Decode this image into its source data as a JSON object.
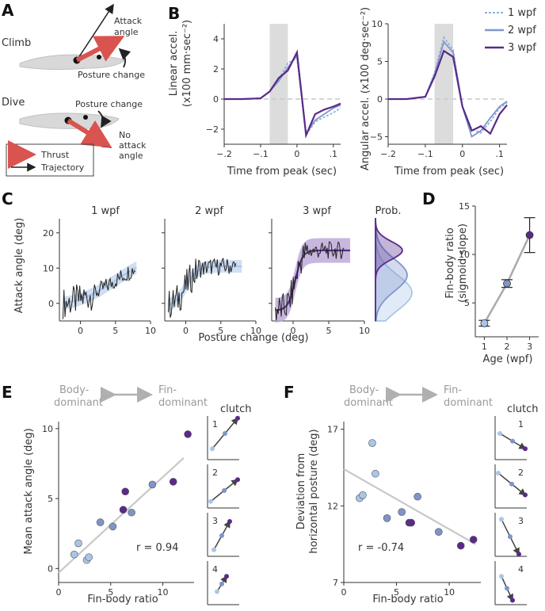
{
  "panels": {
    "A": {
      "letter": "A",
      "climb": {
        "title": "Climb",
        "attack_label_1": "Attack",
        "attack_label_2": "angle",
        "posture": "Posture change"
      },
      "dive": {
        "title": "Dive",
        "posture": "Posture change",
        "no_attack_1": "No",
        "no_attack_2": "attack",
        "no_attack_3": "angle"
      },
      "legend": {
        "thrust": "Thrust",
        "trajectory": "Trajectory"
      }
    },
    "B": {
      "letter": "B",
      "xlabel": "Time from peak (sec)",
      "left_ylabel_1": "Linear accel.",
      "left_ylabel_2": "(x100 mm·sec⁻²)",
      "right_ylabel": "Angular accel. (x100 deg·sec⁻²)",
      "legend": [
        "1 wpf",
        "2 wpf",
        "3 wpf"
      ]
    },
    "C": {
      "letter": "C",
      "titles": [
        "1 wpf",
        "2 wpf",
        "3 wpf",
        "Prob."
      ],
      "xlabel": "Posture change (deg)",
      "ylabel": "Attack angle (deg)"
    },
    "D": {
      "letter": "D",
      "ylabel_1": "Fin-body ratio",
      "ylabel_2": "(sigmoid slope)",
      "xlabel": "Age (wpf)"
    },
    "E": {
      "letter": "E",
      "body_dominant_1": "Body-",
      "body_dominant_2": "dominant",
      "fin_dominant_1": "Fin-",
      "fin_dominant_2": "dominant",
      "ylabel": "Mean attack angle (deg)",
      "xlabel": "Fin-body ratio",
      "r_text": "r = 0.94",
      "clutch_title": "clutch",
      "clutch_labels": [
        "1",
        "2",
        "3",
        "4"
      ]
    },
    "F": {
      "letter": "F",
      "body_dominant_1": "Body-",
      "body_dominant_2": "dominant",
      "fin_dominant_1": "Fin-",
      "fin_dominant_2": "dominant",
      "ylabel_1": "Deviation from",
      "ylabel_2": "horizontal posture (deg)",
      "xlabel": "Fin-body ratio",
      "r_text": "r = -0.74",
      "clutch_title": "clutch",
      "clutch_labels": [
        "1",
        "2",
        "3",
        "4"
      ]
    }
  },
  "colors": {
    "wpf1": "#a9c6e8",
    "wpf2": "#6a7fbf",
    "wpf3": "#5a2a8a",
    "shade": "#dcdcdc",
    "trace": "#222222",
    "red": "#d9534f",
    "fit": "#c8c8c8"
  },
  "chart_data": [
    {
      "id": "B-left",
      "type": "line",
      "xlabel": "Time from peak (sec)",
      "ylabel": "Linear accel. (x100 mm·sec⁻²)",
      "xlim": [
        -0.2,
        0.12
      ],
      "ylim": [
        -3,
        5
      ],
      "xticks": [
        -0.2,
        -0.1,
        0,
        0.1
      ],
      "yticks": [
        -2,
        0,
        2,
        4
      ],
      "shaded_region": [
        -0.075,
        -0.025
      ],
      "x": [
        -0.2,
        -0.15,
        -0.1,
        -0.075,
        -0.05,
        -0.025,
        0,
        0.025,
        0.05,
        0.075,
        0.1,
        0.12
      ],
      "series": [
        {
          "name": "1 wpf",
          "values": [
            0,
            0,
            0.05,
            0.5,
            1.3,
            2.4,
            2.7,
            -2.4,
            -1.5,
            -1.2,
            -0.9,
            -0.6
          ]
        },
        {
          "name": "2 wpf",
          "values": [
            0,
            0,
            0.05,
            0.5,
            1.2,
            2.1,
            2.9,
            -2.3,
            -1.4,
            -1.0,
            -0.6,
            -0.4
          ]
        },
        {
          "name": "3 wpf",
          "values": [
            0,
            0,
            0.05,
            0.5,
            1.4,
            1.9,
            3.1,
            -2.4,
            -1.0,
            -0.7,
            -0.5,
            -0.3
          ]
        }
      ]
    },
    {
      "id": "B-right",
      "type": "line",
      "xlabel": "Time from peak (sec)",
      "ylabel": "Angular accel. (x100 deg·sec⁻²)",
      "xlim": [
        -0.2,
        0.12
      ],
      "ylim": [
        -6,
        10
      ],
      "xticks": [
        -0.2,
        -0.1,
        0,
        0.1
      ],
      "yticks": [
        -5,
        0,
        5,
        10
      ],
      "shaded_region": [
        -0.075,
        -0.025
      ],
      "x": [
        -0.2,
        -0.15,
        -0.1,
        -0.075,
        -0.05,
        -0.025,
        0,
        0.025,
        0.05,
        0.075,
        0.1,
        0.12
      ],
      "series": [
        {
          "name": "1 wpf",
          "values": [
            0,
            0,
            0.3,
            3.5,
            8.2,
            6.5,
            -1.0,
            -4.0,
            -4.5,
            -3.0,
            -1.2,
            -0.5
          ]
        },
        {
          "name": "2 wpf",
          "values": [
            0,
            0,
            0.3,
            3.3,
            7.6,
            6.2,
            -1.0,
            -5.0,
            -4.2,
            -2.5,
            -1.0,
            -0.3
          ]
        },
        {
          "name": "3 wpf",
          "values": [
            0,
            0,
            0.3,
            3.0,
            6.4,
            5.6,
            -1.0,
            -4.2,
            -3.6,
            -4.6,
            -2.0,
            -0.8
          ]
        }
      ],
      "legend": "top-right"
    },
    {
      "id": "C",
      "type": "line",
      "xlabel": "Posture change (deg)",
      "ylabel": "Attack angle (deg)",
      "xlim": [
        -3,
        10
      ],
      "ylim": [
        -5,
        24
      ],
      "xticks": [
        0,
        5,
        10
      ],
      "yticks": [
        0,
        10,
        20
      ],
      "subplots": [
        "1 wpf",
        "2 wpf",
        "3 wpf"
      ]
    },
    {
      "id": "D",
      "type": "scatter",
      "xlabel": "Age (wpf)",
      "ylabel": "Fin-body ratio (sigmoid slope)",
      "xlim": [
        0.6,
        3.4
      ],
      "ylim": [
        1.5,
        15
      ],
      "xticks": [
        1,
        2,
        3
      ],
      "yticks": [
        5,
        10,
        15
      ],
      "x": [
        1,
        2,
        3
      ],
      "values": [
        2.9,
        7.0,
        12.0
      ],
      "errors": [
        0.3,
        0.4,
        1.8
      ]
    },
    {
      "id": "E",
      "type": "scatter",
      "xlabel": "Fin-body ratio",
      "ylabel": "Mean attack angle (deg)",
      "xlim": [
        0,
        13
      ],
      "ylim": [
        -1,
        10.5
      ],
      "xticks": [
        0,
        5,
        10
      ],
      "yticks": [
        0,
        5,
        10
      ],
      "r": 0.94,
      "fit_line": [
        [
          0,
          -0.3
        ],
        [
          12,
          7.9
        ]
      ],
      "points": [
        {
          "x": 1.5,
          "y": 1.0,
          "group": "1 wpf"
        },
        {
          "x": 1.9,
          "y": 1.8,
          "group": "1 wpf"
        },
        {
          "x": 2.7,
          "y": 0.6,
          "group": "1 wpf"
        },
        {
          "x": 2.9,
          "y": 0.8,
          "group": "1 wpf"
        },
        {
          "x": 4.0,
          "y": 3.3,
          "group": "2 wpf"
        },
        {
          "x": 5.2,
          "y": 3.0,
          "group": "2 wpf"
        },
        {
          "x": 7.0,
          "y": 4.0,
          "group": "2 wpf"
        },
        {
          "x": 9.0,
          "y": 6.0,
          "group": "2 wpf"
        },
        {
          "x": 6.2,
          "y": 4.2,
          "group": "3 wpf"
        },
        {
          "x": 6.4,
          "y": 5.5,
          "group": "3 wpf"
        },
        {
          "x": 11.0,
          "y": 6.2,
          "group": "3 wpf"
        },
        {
          "x": 12.4,
          "y": 9.6,
          "group": "3 wpf"
        }
      ]
    },
    {
      "id": "F",
      "type": "scatter",
      "xlabel": "Fin-body ratio",
      "ylabel": "Deviation from horizontal posture (deg)",
      "xlim": [
        0,
        13
      ],
      "ylim": [
        7,
        17.5
      ],
      "xticks": [
        0,
        5,
        10
      ],
      "yticks": [
        7,
        12,
        17
      ],
      "r": -0.74,
      "fit_line": [
        [
          0,
          14.4
        ],
        [
          12.5,
          9.5
        ]
      ],
      "points": [
        {
          "x": 1.5,
          "y": 12.5,
          "group": "1 wpf"
        },
        {
          "x": 1.8,
          "y": 12.7,
          "group": "1 wpf"
        },
        {
          "x": 2.7,
          "y": 16.1,
          "group": "1 wpf"
        },
        {
          "x": 3.0,
          "y": 14.1,
          "group": "1 wpf"
        },
        {
          "x": 4.1,
          "y": 11.2,
          "group": "2 wpf"
        },
        {
          "x": 5.5,
          "y": 11.6,
          "group": "2 wpf"
        },
        {
          "x": 7.0,
          "y": 12.6,
          "group": "2 wpf"
        },
        {
          "x": 9.0,
          "y": 10.3,
          "group": "2 wpf"
        },
        {
          "x": 6.2,
          "y": 10.9,
          "group": "3 wpf"
        },
        {
          "x": 6.4,
          "y": 10.9,
          "group": "3 wpf"
        },
        {
          "x": 11.1,
          "y": 9.4,
          "group": "3 wpf"
        },
        {
          "x": 12.3,
          "y": 9.8,
          "group": "3 wpf"
        }
      ]
    }
  ]
}
